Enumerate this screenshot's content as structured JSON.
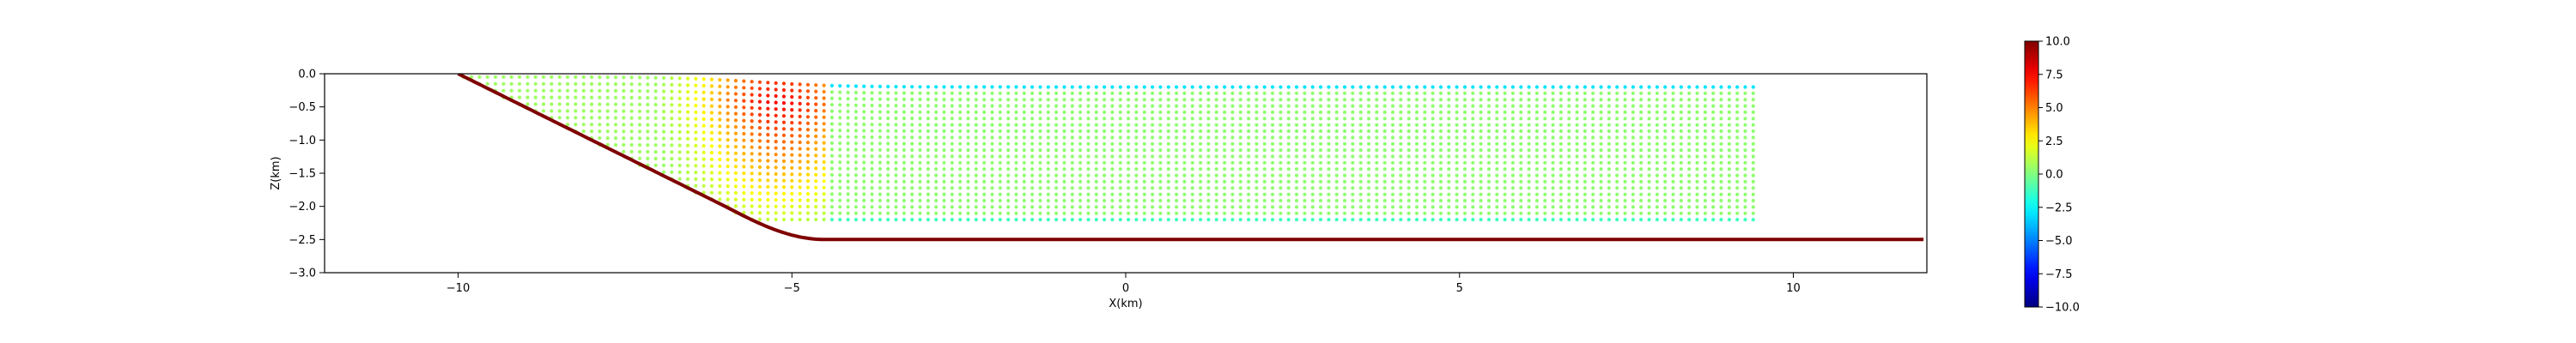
{
  "chart_data": {
    "type": "scatter",
    "title": "",
    "xlabel": "X(km)",
    "ylabel": "Z(km)",
    "xlim": [
      -12,
      12
    ],
    "ylim": [
      -3.0,
      0.0
    ],
    "x_ticks": [
      -10,
      -5,
      0,
      5,
      10
    ],
    "x_tick_labels": [
      "−10",
      "−5",
      "0",
      "5",
      "10"
    ],
    "y_ticks": [
      0.0,
      -0.5,
      -1.0,
      -1.5,
      -2.0,
      -2.5,
      -3.0
    ],
    "y_tick_labels": [
      "0.0",
      "−0.5",
      "−1.0",
      "−1.5",
      "−2.0",
      "−2.5",
      "−3.0"
    ],
    "grid": false,
    "legend": "none",
    "fault": {
      "shallow_x": -10,
      "deep_x": -6,
      "bend_x": -4.5,
      "deep_z": -2.5,
      "x_end": 12,
      "color": "#7f0000"
    },
    "tracer_layers": {
      "x_start": -11,
      "x_end": 9.5,
      "z_top": -0.2,
      "z_bottom": -2.2,
      "count": 22,
      "sample_spacing": 0.12,
      "note_values": "deformed hangingwall layers, values in colorbar units"
    },
    "colorbar": {
      "colormap": "jet",
      "vmin": -10.0,
      "vmax": 10.0,
      "ticks": [
        10.0,
        7.5,
        5.0,
        2.5,
        0.0,
        -2.5,
        -5.0,
        -7.5,
        -10.0
      ],
      "tick_labels": [
        "10.0",
        "7.5",
        "5.0",
        "2.5",
        "0.0",
        "−2.5",
        "−5.0",
        "−7.5",
        "−10.0"
      ]
    }
  }
}
